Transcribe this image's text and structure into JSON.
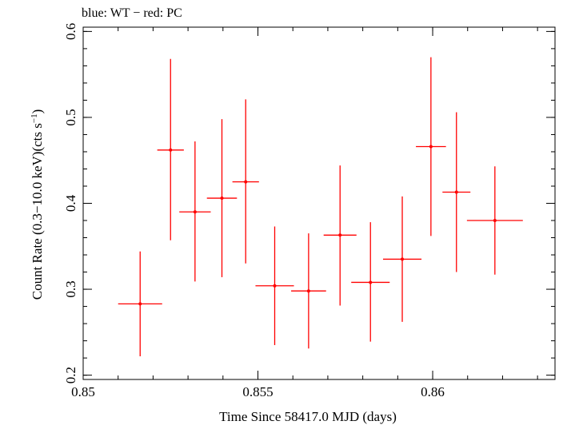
{
  "chart_data": {
    "type": "scatter",
    "title": "blue: WT − red: PC",
    "xlabel": "Time Since 58417.0 MJD (days)",
    "ylabel_main": "Count Rate (0.3−10.0 keV)(cts s",
    "ylabel_sup": "−1",
    "ylabel_close": ")",
    "xlim": [
      0.85,
      0.8635
    ],
    "ylim": [
      0.195,
      0.605
    ],
    "x_ticks": [
      {
        "value": 0.85,
        "label": "0.85"
      },
      {
        "value": 0.855,
        "label": "0.855"
      },
      {
        "value": 0.86,
        "label": "0.86"
      }
    ],
    "x_minor_step": 0.001,
    "y_ticks": [
      {
        "value": 0.2,
        "label": "0.2"
      },
      {
        "value": 0.3,
        "label": "0.3"
      },
      {
        "value": 0.4,
        "label": "0.4"
      },
      {
        "value": 0.5,
        "label": "0.5"
      },
      {
        "value": 0.6,
        "label": "0.6"
      }
    ],
    "y_minor_step": 0.02,
    "grid": false,
    "series": [
      {
        "color": "#ff0000",
        "points": [
          {
            "x": 0.85163,
            "xerr": 0.00063,
            "y": 0.283,
            "ylo": 0.222,
            "yhi": 0.344
          },
          {
            "x": 0.8525,
            "xerr": 0.00038,
            "y": 0.462,
            "ylo": 0.357,
            "yhi": 0.568
          },
          {
            "x": 0.8532,
            "xerr": 0.00045,
            "y": 0.39,
            "ylo": 0.309,
            "yhi": 0.472
          },
          {
            "x": 0.85397,
            "xerr": 0.00043,
            "y": 0.406,
            "ylo": 0.314,
            "yhi": 0.498
          },
          {
            "x": 0.85465,
            "xerr": 0.00038,
            "y": 0.425,
            "ylo": 0.33,
            "yhi": 0.521
          },
          {
            "x": 0.85548,
            "xerr": 0.00055,
            "y": 0.304,
            "ylo": 0.235,
            "yhi": 0.373
          },
          {
            "x": 0.85645,
            "xerr": 0.0005,
            "y": 0.298,
            "ylo": 0.231,
            "yhi": 0.365
          },
          {
            "x": 0.85735,
            "xerr": 0.00047,
            "y": 0.363,
            "ylo": 0.281,
            "yhi": 0.444
          },
          {
            "x": 0.85822,
            "xerr": 0.00055,
            "y": 0.308,
            "ylo": 0.239,
            "yhi": 0.378
          },
          {
            "x": 0.85913,
            "xerr": 0.00055,
            "y": 0.335,
            "ylo": 0.262,
            "yhi": 0.408
          },
          {
            "x": 0.85995,
            "xerr": 0.00043,
            "y": 0.466,
            "ylo": 0.362,
            "yhi": 0.57
          },
          {
            "x": 0.86068,
            "xerr": 0.0004,
            "y": 0.413,
            "ylo": 0.32,
            "yhi": 0.506
          },
          {
            "x": 0.86178,
            "xerr": 0.0008,
            "y": 0.38,
            "ylo": 0.317,
            "yhi": 0.443
          }
        ]
      }
    ]
  }
}
